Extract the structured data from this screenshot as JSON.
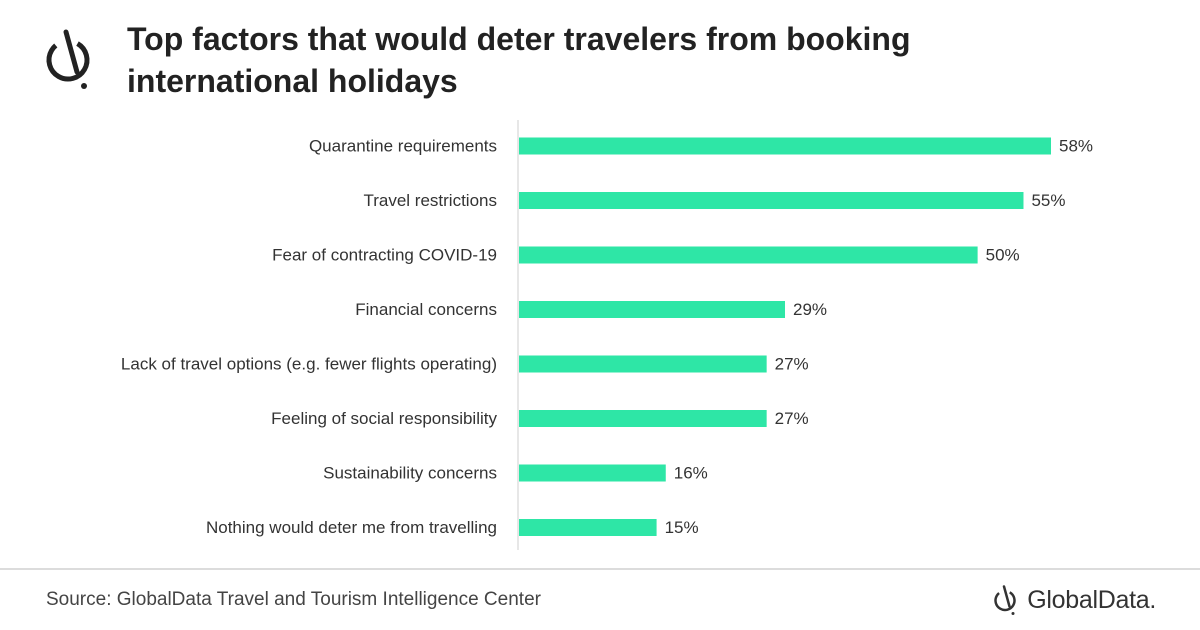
{
  "header": {
    "title": "Top factors that would deter travelers from booking international holidays",
    "logo_icon": "globaldata-clock-icon"
  },
  "chart_data": {
    "type": "bar",
    "orientation": "horizontal",
    "title": "Top factors that would deter travelers from booking international holidays",
    "categories": [
      "Quarantine requirements",
      "Travel restrictions",
      "Fear of contracting COVID-19",
      "Financial concerns",
      "Lack of travel options (e.g. fewer flights operating)",
      "Feeling of social responsibility",
      "Sustainability concerns",
      "Nothing would deter me from travelling"
    ],
    "values": [
      58,
      55,
      50,
      29,
      27,
      27,
      16,
      15
    ],
    "value_labels": [
      "58%",
      "55%",
      "50%",
      "29%",
      "27%",
      "27%",
      "16%",
      "15%"
    ],
    "xlim": [
      0,
      58
    ],
    "grid": false,
    "legend": "none",
    "bar_color": "#2ee6a6",
    "axis_color": "#cfcfcf"
  },
  "footer": {
    "source": "Source: GlobalData Travel and Tourism Intelligence Center",
    "brand_name": "GlobalData.",
    "brand_icon": "globaldata-clock-icon"
  }
}
